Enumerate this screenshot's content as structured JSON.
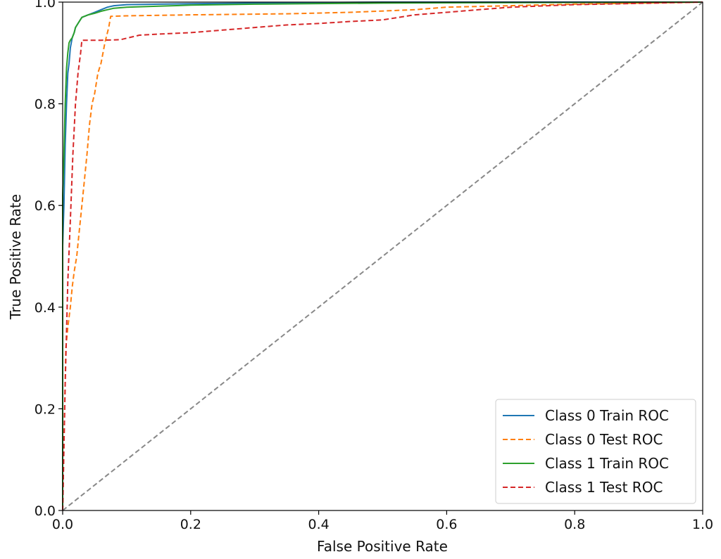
{
  "chart_data": {
    "type": "line",
    "title": "",
    "xlabel": "False Positive Rate",
    "ylabel": "True Positive Rate",
    "xlim": [
      0.0,
      1.0
    ],
    "ylim": [
      0.0,
      1.0
    ],
    "x_ticks": [
      "0.0",
      "0.2",
      "0.4",
      "0.6",
      "0.8",
      "1.0"
    ],
    "y_ticks": [
      "0.0",
      "0.2",
      "0.4",
      "0.6",
      "0.8",
      "1.0"
    ],
    "x_tick_values": [
      0.0,
      0.2,
      0.4,
      0.6,
      0.8,
      1.0
    ],
    "y_tick_values": [
      0.0,
      0.2,
      0.4,
      0.6,
      0.8,
      1.0
    ],
    "grid": false,
    "legend_position": "bottom-right",
    "series": [
      {
        "name": "Class 0 Train ROC",
        "color": "#1f77b4",
        "dashed": false,
        "x": [
          0.0,
          0.0,
          0.002,
          0.004,
          0.006,
          0.008,
          0.01,
          0.012,
          0.015,
          0.018,
          0.02,
          0.025,
          0.03,
          0.04,
          0.05,
          0.06,
          0.07,
          0.08,
          0.1,
          0.15,
          0.2,
          0.3,
          0.4,
          0.5,
          0.7,
          1.0
        ],
        "y": [
          0.0,
          0.52,
          0.6,
          0.72,
          0.8,
          0.86,
          0.88,
          0.91,
          0.93,
          0.94,
          0.95,
          0.96,
          0.97,
          0.975,
          0.98,
          0.985,
          0.99,
          0.993,
          0.995,
          0.996,
          0.997,
          0.998,
          0.999,
          1.0,
          1.0,
          1.0
        ]
      },
      {
        "name": "Class 0 Test ROC",
        "color": "#ff7f0e",
        "dashed": true,
        "x": [
          0.0,
          0.005,
          0.008,
          0.012,
          0.015,
          0.018,
          0.022,
          0.026,
          0.03,
          0.034,
          0.038,
          0.042,
          0.046,
          0.05,
          0.055,
          0.06,
          0.066,
          0.072,
          0.075,
          0.1,
          0.2,
          0.35,
          0.45,
          0.55,
          0.6,
          0.7,
          0.8,
          1.0
        ],
        "y": [
          0.0,
          0.32,
          0.36,
          0.4,
          0.44,
          0.47,
          0.5,
          0.55,
          0.6,
          0.65,
          0.7,
          0.76,
          0.8,
          0.82,
          0.86,
          0.88,
          0.92,
          0.95,
          0.972,
          0.973,
          0.975,
          0.977,
          0.98,
          0.985,
          0.99,
          0.993,
          0.996,
          1.0
        ]
      },
      {
        "name": "Class 1 Train ROC",
        "color": "#2ca02c",
        "dashed": false,
        "x": [
          0.0,
          0.0,
          0.002,
          0.004,
          0.006,
          0.008,
          0.01,
          0.012,
          0.015,
          0.018,
          0.02,
          0.025,
          0.03,
          0.04,
          0.05,
          0.06,
          0.07,
          0.08,
          0.1,
          0.15,
          0.2,
          0.3,
          0.5,
          0.7,
          1.0
        ],
        "y": [
          0.0,
          0.62,
          0.7,
          0.8,
          0.87,
          0.9,
          0.92,
          0.925,
          0.93,
          0.94,
          0.95,
          0.96,
          0.97,
          0.975,
          0.978,
          0.982,
          0.985,
          0.988,
          0.99,
          0.992,
          0.994,
          0.996,
          0.998,
          0.999,
          1.0
        ]
      },
      {
        "name": "Class 1 Test ROC",
        "color": "#d62728",
        "dashed": true,
        "x": [
          0.0,
          0.004,
          0.008,
          0.012,
          0.016,
          0.02,
          0.024,
          0.028,
          0.03,
          0.06,
          0.09,
          0.12,
          0.15,
          0.2,
          0.25,
          0.3,
          0.35,
          0.4,
          0.45,
          0.5,
          0.55,
          0.6,
          0.65,
          0.7,
          0.8,
          1.0
        ],
        "y": [
          0.0,
          0.25,
          0.45,
          0.57,
          0.7,
          0.8,
          0.86,
          0.9,
          0.925,
          0.925,
          0.926,
          0.935,
          0.937,
          0.94,
          0.945,
          0.95,
          0.955,
          0.958,
          0.962,
          0.965,
          0.975,
          0.98,
          0.985,
          0.99,
          0.995,
          1.0
        ]
      },
      {
        "name": "",
        "color": "#888888",
        "dashed": true,
        "role": "chance-diagonal",
        "x": [
          0.0,
          1.0
        ],
        "y": [
          0.0,
          1.0
        ]
      }
    ]
  }
}
